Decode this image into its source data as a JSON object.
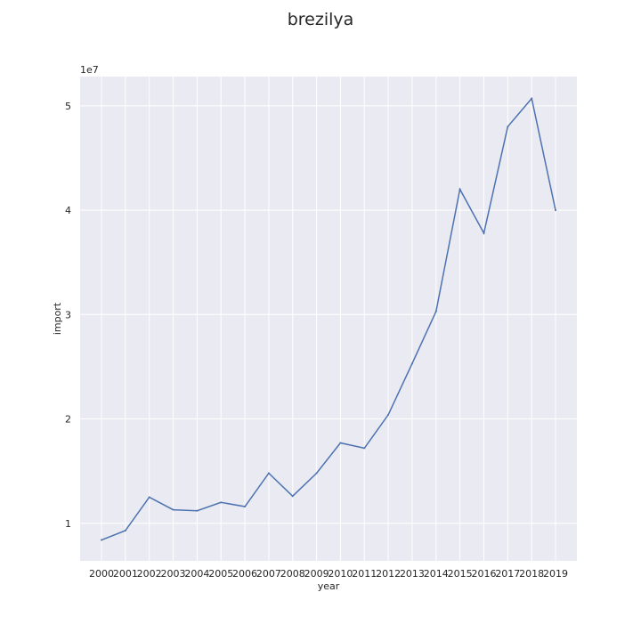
{
  "chart_data": {
    "type": "line",
    "title": "brezilya",
    "xlabel": "year",
    "ylabel": "import",
    "y_offset_label": "1e7",
    "x": [
      "2000",
      "2001",
      "2002",
      "2003",
      "2004",
      "2005",
      "2006",
      "2007",
      "2008",
      "2009",
      "2010",
      "2011",
      "2012",
      "2013",
      "2014",
      "2015",
      "2016",
      "2017",
      "2018",
      "2019"
    ],
    "y": [
      8400000,
      9300000,
      12500000,
      11300000,
      11200000,
      12000000,
      11600000,
      14800000,
      12600000,
      14800000,
      17700000,
      17200000,
      20400000,
      25300000,
      30300000,
      42000000,
      37800000,
      48000000,
      50700000,
      40000000
    ],
    "y_ticks": [
      10000000,
      20000000,
      30000000,
      40000000,
      50000000
    ],
    "y_tick_labels": [
      "1",
      "2",
      "3",
      "4",
      "5"
    ],
    "ylim": [
      6400000,
      52800000
    ],
    "grid": true,
    "line_color": "#4c72b0",
    "background_color": "#eaeaf2"
  }
}
